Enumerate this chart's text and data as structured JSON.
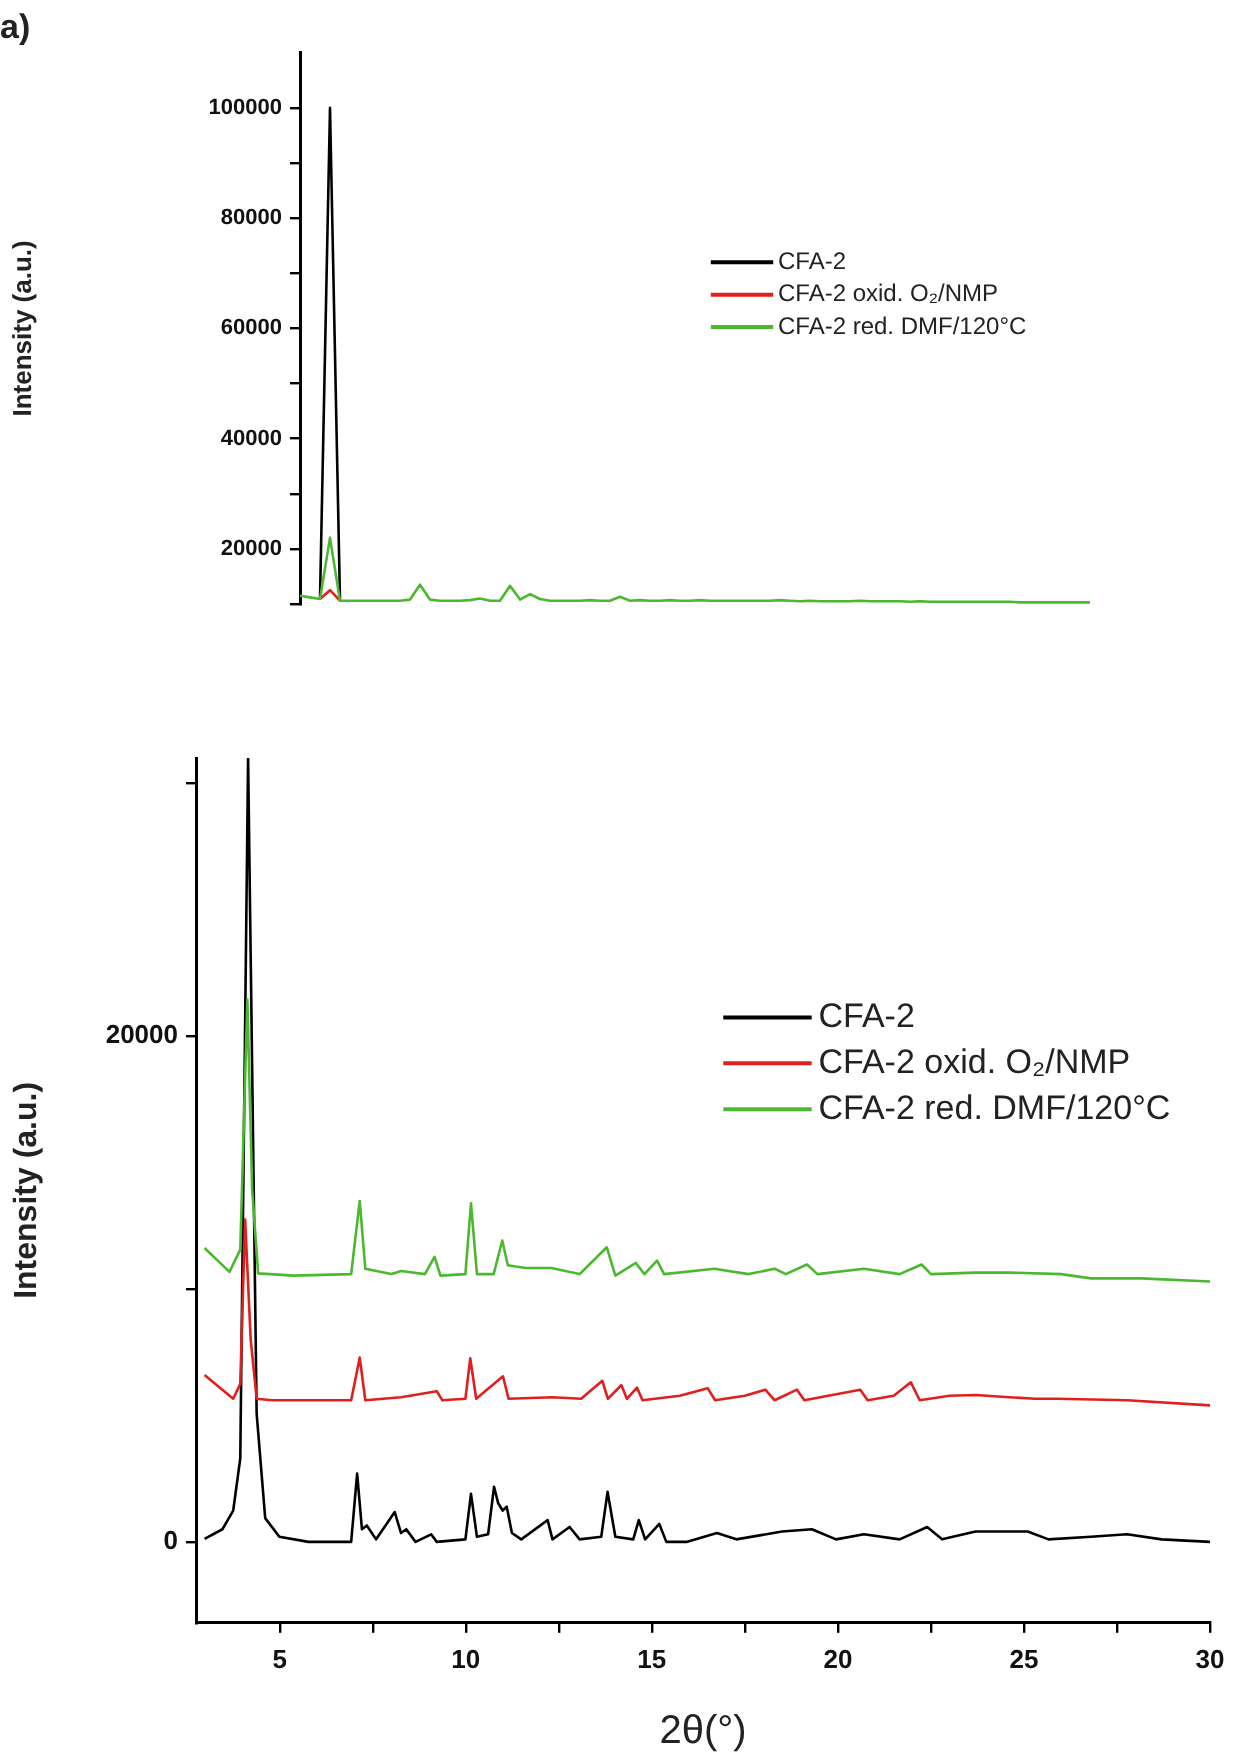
{
  "chart_data": [
    {
      "type": "line",
      "title": "a)",
      "ylabel": "Intensity (a.u.)",
      "categories": [
        null,
        null,
        null,
        null,
        null,
        null,
        null,
        null,
        null,
        null,
        null,
        null,
        null,
        null,
        null,
        null,
        null,
        null,
        null,
        null,
        null,
        null,
        null,
        null,
        null,
        null,
        null,
        null,
        null,
        null,
        null,
        null,
        null,
        null,
        null,
        null,
        null,
        null,
        null,
        null,
        null,
        null,
        null,
        null,
        null,
        null,
        null,
        null,
        null,
        null,
        null,
        null,
        null,
        null,
        null,
        null,
        null,
        null,
        null,
        null,
        null,
        null,
        null,
        null,
        null,
        null,
        null,
        null,
        null,
        null,
        null,
        null,
        null,
        null,
        null,
        null,
        null,
        null,
        null,
        null
      ],
      "ylim": [
        10000,
        110000
      ],
      "yticks": [
        {
          "value": 10000,
          "label": null
        },
        20000,
        {
          "value": 30000,
          "label": null
        },
        40000,
        {
          "value": 50000,
          "label": null
        },
        60000,
        {
          "value": 70000,
          "label": null
        },
        80000,
        {
          "value": 90000,
          "label": null
        },
        100000
      ],
      "tick_labels": "y",
      "grid": false,
      "legend": "right",
      "marker": "none",
      "line_style": "solid",
      "series": [
        {
          "name": "CFA-2",
          "color": "#000000",
          "values": [
            null,
            null,
            10900,
            100000,
            10600,
            null,
            null,
            null,
            null,
            null,
            null,
            null,
            null,
            null,
            null,
            null,
            null,
            null,
            null,
            null,
            null,
            null,
            null,
            null,
            null,
            null,
            null,
            null,
            null,
            null,
            null,
            null,
            null,
            null,
            null,
            null,
            null,
            null,
            null,
            null,
            null,
            null,
            null,
            null,
            null,
            null,
            null,
            null,
            null,
            null,
            null,
            null,
            null,
            null,
            null,
            null,
            null,
            null,
            null,
            null,
            null,
            null,
            null,
            null,
            null,
            null,
            null,
            null,
            null,
            null,
            null,
            null,
            null,
            null,
            null,
            null,
            null,
            null,
            null,
            null
          ]
        },
        {
          "name": "CFA-2 oxid. O₂/NMP",
          "color": "#e0201c",
          "values": [
            null,
            null,
            10900,
            12500,
            10600,
            null,
            null,
            null,
            null,
            null,
            null,
            null,
            null,
            null,
            null,
            null,
            null,
            null,
            null,
            null,
            null,
            null,
            null,
            null,
            null,
            null,
            null,
            null,
            null,
            null,
            null,
            null,
            null,
            null,
            null,
            null,
            null,
            null,
            null,
            null,
            null,
            null,
            null,
            null,
            null,
            null,
            null,
            null,
            null,
            null,
            null,
            null,
            null,
            null,
            null,
            null,
            null,
            null,
            null,
            null,
            null,
            null,
            null,
            null,
            null,
            null,
            null,
            null,
            null,
            null,
            null,
            null,
            null,
            null,
            null,
            null,
            null,
            null,
            null,
            null
          ]
        },
        {
          "name": "CFA-2 red. DMF/120°C",
          "color": "#4cb830",
          "values": [
            11500,
            11200,
            10900,
            22000,
            10600,
            10600,
            10600,
            10600,
            10600,
            10600,
            10600,
            10800,
            13500,
            10800,
            10600,
            10600,
            10600,
            10700,
            11000,
            10600,
            10600,
            13300,
            10800,
            11800,
            10900,
            10600,
            10600,
            10600,
            10600,
            10700,
            10600,
            10600,
            11300,
            10600,
            10700,
            10600,
            10600,
            10700,
            10600,
            10600,
            10700,
            10600,
            10600,
            10600,
            10600,
            10600,
            10600,
            10600,
            10700,
            10600,
            10500,
            10600,
            10500,
            10500,
            10500,
            10500,
            10600,
            10500,
            10500,
            10500,
            10500,
            10400,
            10500,
            10400,
            10400,
            10400,
            10400,
            10400,
            10400,
            10400,
            10400,
            10400,
            10300,
            10300,
            10300,
            10300,
            10300,
            10300,
            10300,
            10300
          ]
        }
      ]
    },
    {
      "type": "line",
      "xlabel": "2θ(°)",
      "ylabel": "Intensity (a.u.)",
      "xlim": [
        2.75,
        30
      ],
      "xticks": [
        5,
        {
          "value": 7.5,
          "label": null
        },
        10,
        {
          "value": 12.5,
          "label": null
        },
        15,
        {
          "value": 17.5,
          "label": null
        },
        20,
        {
          "value": 22.5,
          "label": null
        },
        25,
        {
          "value": 27.5,
          "label": null
        },
        30
      ],
      "ylim": [
        -3200,
        31000
      ],
      "yticks": [
        0,
        {
          "value": 10000,
          "label": null
        },
        20000,
        {
          "value": 30000,
          "label": null
        }
      ],
      "grid": false,
      "legend": "right",
      "marker": "none",
      "line_style": "solid",
      "series": [
        {
          "name": "CFA-2",
          "color": "#000000",
          "x": [
            2.98,
            3.46,
            3.75,
            3.94,
            4.15,
            4.38,
            4.61,
            4.99,
            5.77,
            6.92,
            7.08,
            7.21,
            7.34,
            7.59,
            8.09,
            8.26,
            8.4,
            8.65,
            9.07,
            9.22,
            9.99,
            10.14,
            10.3,
            10.6,
            10.76,
            10.87,
            10.99,
            11.1,
            11.24,
            11.49,
            12.2,
            12.33,
            12.79,
            13.06,
            13.64,
            13.81,
            14.02,
            14.5,
            14.65,
            14.82,
            15.2,
            15.39,
            15.93,
            16.75,
            17.27,
            18.5,
            19.3,
            19.95,
            20.7,
            21.66,
            22.4,
            22.8,
            23.7,
            24.63,
            25.1,
            25.66,
            26.8,
            27.77,
            28.7,
            30
          ],
          "values": [
            120,
            500,
            1240,
            3300,
            31000,
            5070,
            940,
            200,
            0,
            0,
            2700,
            500,
            650,
            100,
            1180,
            350,
            500,
            0,
            300,
            0,
            100,
            1900,
            200,
            300,
            2180,
            1530,
            1240,
            1390,
            350,
            100,
            860,
            100,
            590,
            100,
            200,
            1980,
            200,
            100,
            860,
            100,
            710,
            0,
            0,
            350,
            100,
            410,
            500,
            100,
            300,
            100,
            590,
            100,
            410,
            410,
            410,
            100,
            200,
            300,
            100,
            0
          ]
        },
        {
          "name": "CFA-2 oxid. O₂/NMP",
          "color": "#e0201c",
          "x": [
            2.98,
            3.75,
            3.94,
            4.07,
            4.22,
            4.38,
            4.8,
            6.92,
            7.15,
            7.3,
            8.26,
            9.22,
            9.37,
            9.99,
            10.12,
            10.28,
            11.0,
            11.15,
            12.33,
            13.1,
            13.67,
            13.82,
            14.18,
            14.33,
            14.6,
            14.75,
            15.75,
            16.5,
            16.7,
            17.5,
            18.05,
            18.3,
            18.9,
            19.1,
            20.6,
            20.8,
            21.5,
            21.96,
            22.2,
            23.0,
            23.7,
            24.6,
            25.3,
            25.9,
            27.77,
            30
          ],
          "values": [
            6600,
            5660,
            6250,
            12750,
            8000,
            5660,
            5600,
            5600,
            7290,
            5600,
            5720,
            5960,
            5600,
            5660,
            7260,
            5660,
            6550,
            5660,
            5720,
            5660,
            6370,
            5660,
            6200,
            5660,
            6100,
            5600,
            5780,
            6080,
            5600,
            5780,
            6020,
            5600,
            6020,
            5600,
            6020,
            5600,
            5780,
            6310,
            5600,
            5780,
            5810,
            5720,
            5660,
            5660,
            5600,
            5400
          ]
        },
        {
          "name": "CFA-2 red. DMF/120°C",
          "color": "#4cb830",
          "x": [
            2.98,
            3.65,
            3.94,
            4.13,
            4.26,
            4.42,
            5.38,
            6.92,
            7.15,
            7.3,
            8.0,
            8.26,
            8.9,
            9.16,
            9.32,
            9.99,
            10.14,
            10.3,
            10.75,
            10.98,
            11.13,
            11.6,
            12.3,
            13.06,
            13.79,
            14.02,
            14.57,
            14.8,
            15.14,
            15.33,
            16.68,
            17.6,
            18.3,
            18.6,
            19.17,
            19.45,
            20.7,
            21.66,
            22.25,
            22.5,
            23.7,
            24.6,
            26.0,
            26.8,
            28.15,
            30
          ],
          "values": [
            11620,
            10680,
            11560,
            21450,
            13920,
            10620,
            10530,
            10590,
            13480,
            10800,
            10590,
            10710,
            10590,
            11270,
            10530,
            10590,
            13390,
            10590,
            10590,
            11920,
            10940,
            10830,
            10830,
            10590,
            11650,
            10530,
            11030,
            10590,
            11120,
            10590,
            10800,
            10590,
            10800,
            10590,
            10970,
            10590,
            10800,
            10590,
            10970,
            10590,
            10650,
            10650,
            10590,
            10420,
            10420,
            10300
          ]
        }
      ]
    }
  ]
}
